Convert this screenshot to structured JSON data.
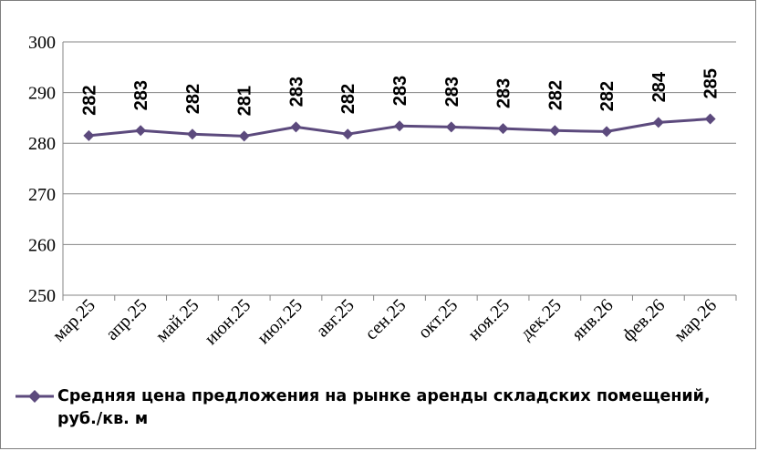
{
  "chart_data": {
    "type": "line",
    "categories": [
      "мар.25",
      "апр.25",
      "май.25",
      "июн.25",
      "июл.25",
      "авг.25",
      "сен.25",
      "окт.25",
      "ноя.25",
      "дек.25",
      "янв.26",
      "фев.26",
      "мар.26"
    ],
    "series": [
      {
        "name": "Средняя цена предложения на рынке аренды складских помещений, руб./кв. м",
        "values": [
          281.5,
          282.5,
          281.8,
          281.4,
          283.2,
          281.8,
          283.4,
          283.2,
          282.9,
          282.5,
          282.3,
          284.1,
          284.8
        ],
        "labels": [
          "282",
          "283",
          "282",
          "281",
          "283",
          "282",
          "283",
          "283",
          "283",
          "282",
          "282",
          "284",
          "285"
        ]
      }
    ],
    "yticks": [
      "300",
      "290",
      "280",
      "270",
      "260",
      "250"
    ],
    "ylim": [
      250,
      300
    ],
    "grid": true,
    "legend": "bottom",
    "colors": {
      "line": "#5c4a7d",
      "marker": "#5c4a7d",
      "grid": "#868686"
    }
  }
}
